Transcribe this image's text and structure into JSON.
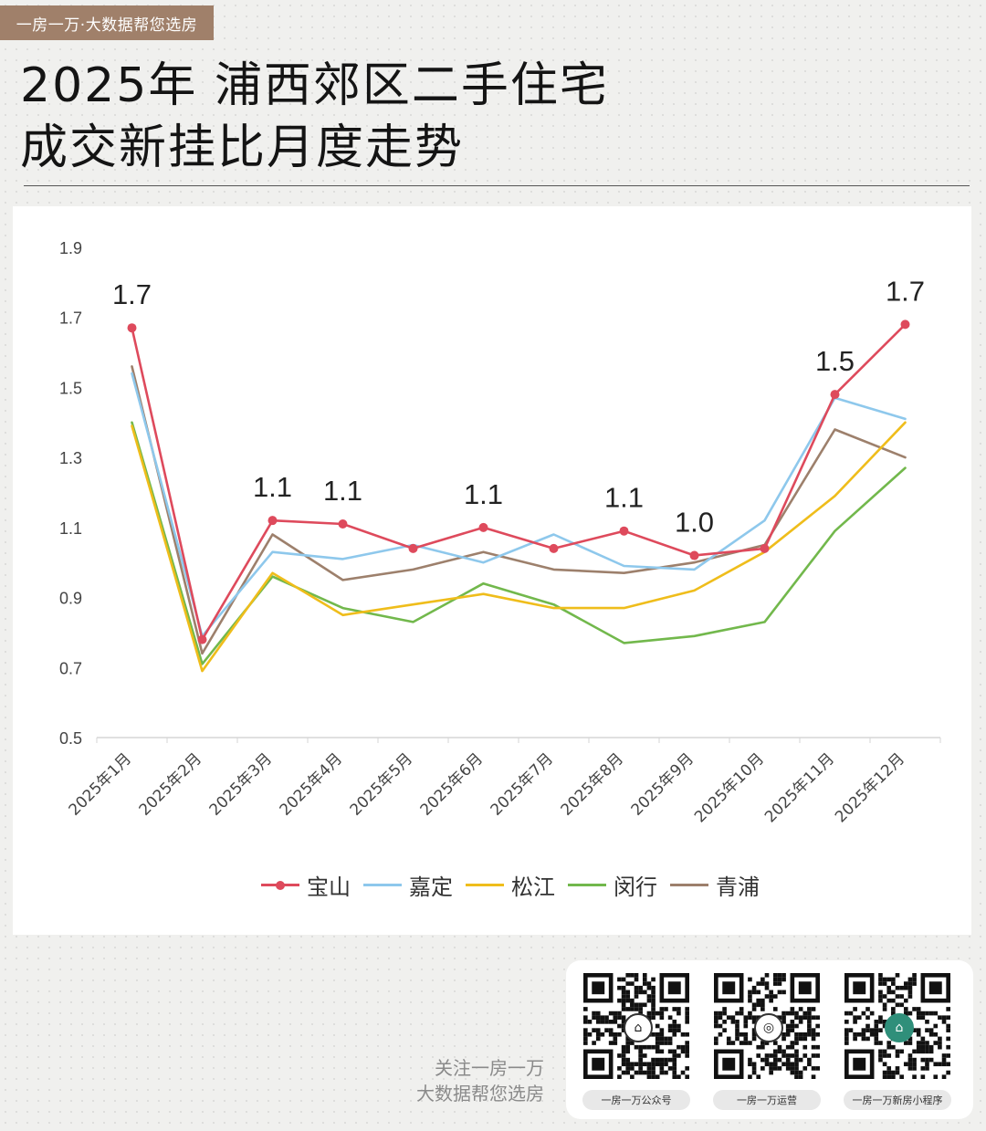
{
  "brand_tag": "一房一万·大数据帮您选房",
  "title_line1": "2025年 浦西郊区二手住宅",
  "title_line2": "成交新挂比月度走势",
  "chart_data": {
    "type": "line",
    "title": "2025年 浦西郊区二手住宅成交新挂比月度走势",
    "categories": [
      "2025年1月",
      "2025年2月",
      "2025年3月",
      "2025年4月",
      "2025年5月",
      "2025年6月",
      "2025年7月",
      "2025年8月",
      "2025年9月",
      "2025年10月",
      "2025年11月",
      "2025年12月"
    ],
    "y_ticks": [
      "0.5",
      "0.7",
      "0.9",
      "1.1",
      "1.3",
      "1.5",
      "1.7",
      "1.9"
    ],
    "ylim": [
      0.5,
      1.9
    ],
    "grid": false,
    "legend_position": "bottom",
    "series": [
      {
        "name": "宝山",
        "color": "#de4a5c",
        "markers": true,
        "values": [
          1.67,
          0.78,
          1.12,
          1.11,
          1.04,
          1.1,
          1.04,
          1.09,
          1.02,
          1.04,
          1.48,
          1.68
        ]
      },
      {
        "name": "嘉定",
        "color": "#8ec8ec",
        "markers": false,
        "values": [
          1.54,
          0.79,
          1.03,
          1.01,
          1.05,
          1.0,
          1.08,
          0.99,
          0.98,
          1.12,
          1.47,
          1.41
        ]
      },
      {
        "name": "松江",
        "color": "#efbd1b",
        "markers": false,
        "values": [
          1.39,
          0.69,
          0.97,
          0.85,
          0.88,
          0.91,
          0.87,
          0.87,
          0.92,
          1.03,
          1.19,
          1.4
        ]
      },
      {
        "name": "闵行",
        "color": "#72b84c",
        "markers": false,
        "values": [
          1.4,
          0.71,
          0.96,
          0.87,
          0.83,
          0.94,
          0.88,
          0.77,
          0.79,
          0.83,
          1.09,
          1.27
        ]
      },
      {
        "name": "青浦",
        "color": "#9d806c",
        "markers": false,
        "values": [
          1.56,
          0.74,
          1.08,
          0.95,
          0.98,
          1.03,
          0.98,
          0.97,
          1.0,
          1.05,
          1.38,
          1.3
        ]
      }
    ],
    "data_labels": [
      {
        "index": 0,
        "text": "1.7"
      },
      {
        "index": 2,
        "text": "1.1"
      },
      {
        "index": 3,
        "text": "1.1"
      },
      {
        "index": 5,
        "text": "1.1"
      },
      {
        "index": 7,
        "text": "1.1"
      },
      {
        "index": 8,
        "text": "1.0"
      },
      {
        "index": 10,
        "text": "1.5"
      },
      {
        "index": 11,
        "text": "1.7"
      }
    ]
  },
  "footer": {
    "follow_line1": "关注一房一万",
    "follow_line2": "大数据帮您选房"
  },
  "qr_codes": [
    {
      "label": "一房一万公众号",
      "icon": "logo-icon"
    },
    {
      "label": "一房一万运营",
      "icon": "wechat-icon"
    },
    {
      "label": "一房一万新房小程序",
      "icon": "logo-icon"
    }
  ]
}
